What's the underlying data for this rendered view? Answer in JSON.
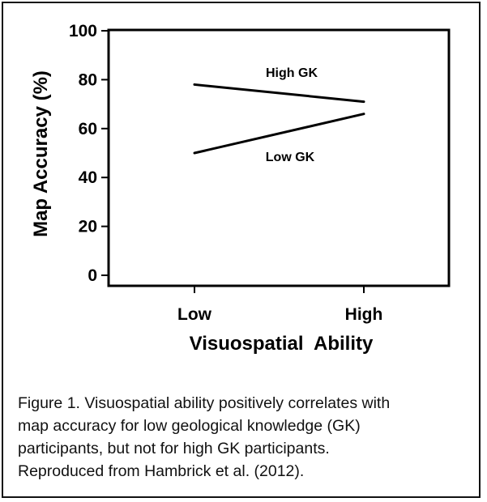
{
  "chart_data": {
    "type": "line",
    "categories": [
      "Low",
      "High"
    ],
    "series": [
      {
        "name": "High GK",
        "values": [
          78,
          71
        ]
      },
      {
        "name": "Low GK",
        "values": [
          50,
          66
        ]
      }
    ],
    "title": "",
    "xlabel": "Visuospatial  Ability",
    "ylabel": "Map Accuracy (%)",
    "ylim": [
      0,
      100
    ],
    "yticks": [
      "0",
      "20",
      "40",
      "60",
      "80",
      "100"
    ],
    "grid": false,
    "legend": "none (series labeled inline)",
    "line_color": "#000000"
  },
  "caption": {
    "lines": [
      "Figure 1. Visuospatial ability positively correlates with",
      "map accuracy for low geological knowledge (GK)",
      "participants, but not for high GK participants.",
      "Reproduced from Hambrick et al. (2012)."
    ]
  }
}
